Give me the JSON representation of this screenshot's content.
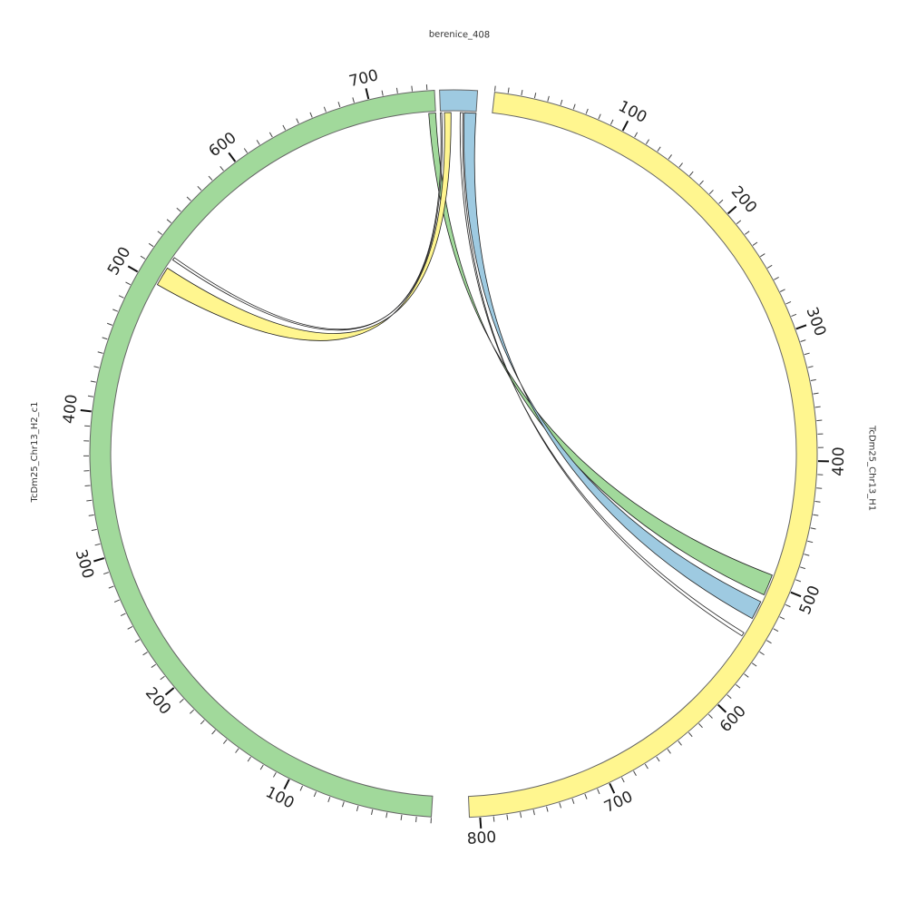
{
  "diagram": {
    "type": "circos",
    "tick_step_major": 100,
    "tick_step_minor": 10,
    "sequences": [
      {
        "id": "TcDm25_Chr13_H1",
        "label": "TcDm25_Chr13_H1",
        "length": 808,
        "start_angle_deg": 6.5,
        "end_angle_deg": 177.5,
        "direction": "cw",
        "color": "#fff68f"
      },
      {
        "id": "TcDm25_Chr13_H2_c1",
        "label": "TcDm25_Chr13_H2_c1",
        "length": 745,
        "start_angle_deg": 183.5,
        "end_angle_deg": 357.0,
        "direction": "cw",
        "color": "#a1d99b"
      },
      {
        "id": "berenice_408",
        "label": "berenice_408",
        "length": 27,
        "start_angle_deg": 357.8,
        "end_angle_deg": 363.8,
        "direction": "cw",
        "color": "#9ecae1"
      }
    ],
    "links": [
      {
        "from": "TcDm25_Chr13_H2_c1",
        "from_range": [
          740,
          745
        ],
        "to": "TcDm25_Chr13_H1",
        "to_range": [
          493,
          510
        ],
        "color": "#a1d99b"
      },
      {
        "from": "berenice_408",
        "from_range": [
          18,
          27
        ],
        "to": "TcDm25_Chr13_H1",
        "to_range": [
          516,
          531
        ],
        "color": "#9ecae1"
      },
      {
        "from": "berenice_408",
        "from_range": [
          15,
          17
        ],
        "to": "TcDm25_Chr13_H1",
        "to_range": [
          544,
          547
        ],
        "color": "#ffffff"
      },
      {
        "from": "berenice_408",
        "from_range": [
          3,
          8
        ],
        "to": "TcDm25_Chr13_H2_c1",
        "to_range": [
          499,
          513
        ],
        "color": "#fff68f"
      },
      {
        "from": "berenice_408",
        "from_range": [
          0,
          1
        ],
        "to": "TcDm25_Chr13_H2_c1",
        "to_range": [
          520,
          522
        ],
        "color": "#ffffff"
      }
    ]
  }
}
